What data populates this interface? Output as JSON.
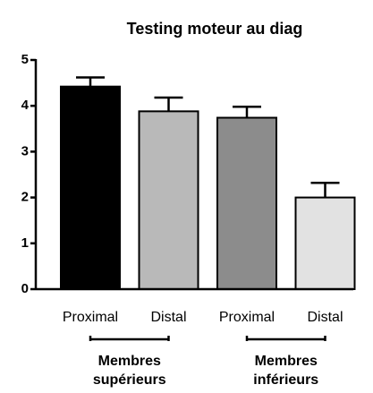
{
  "chart_data": {
    "type": "bar",
    "title": "Testing moteur au diag",
    "categories": [
      "Proximal",
      "Distal",
      "Proximal",
      "Distal"
    ],
    "values": [
      4.42,
      3.88,
      3.74,
      2.0
    ],
    "errors": [
      0.2,
      0.3,
      0.24,
      0.32
    ],
    "colors": [
      "#000000",
      "#b9b9b9",
      "#8c8c8c",
      "#e2e2e2"
    ],
    "groups": [
      [
        "Membres",
        "supérieurs"
      ],
      [
        "Membres",
        "inférieurs"
      ]
    ],
    "ylim": [
      0,
      5
    ],
    "yticks": [
      0,
      1,
      2,
      3,
      4,
      5
    ]
  }
}
